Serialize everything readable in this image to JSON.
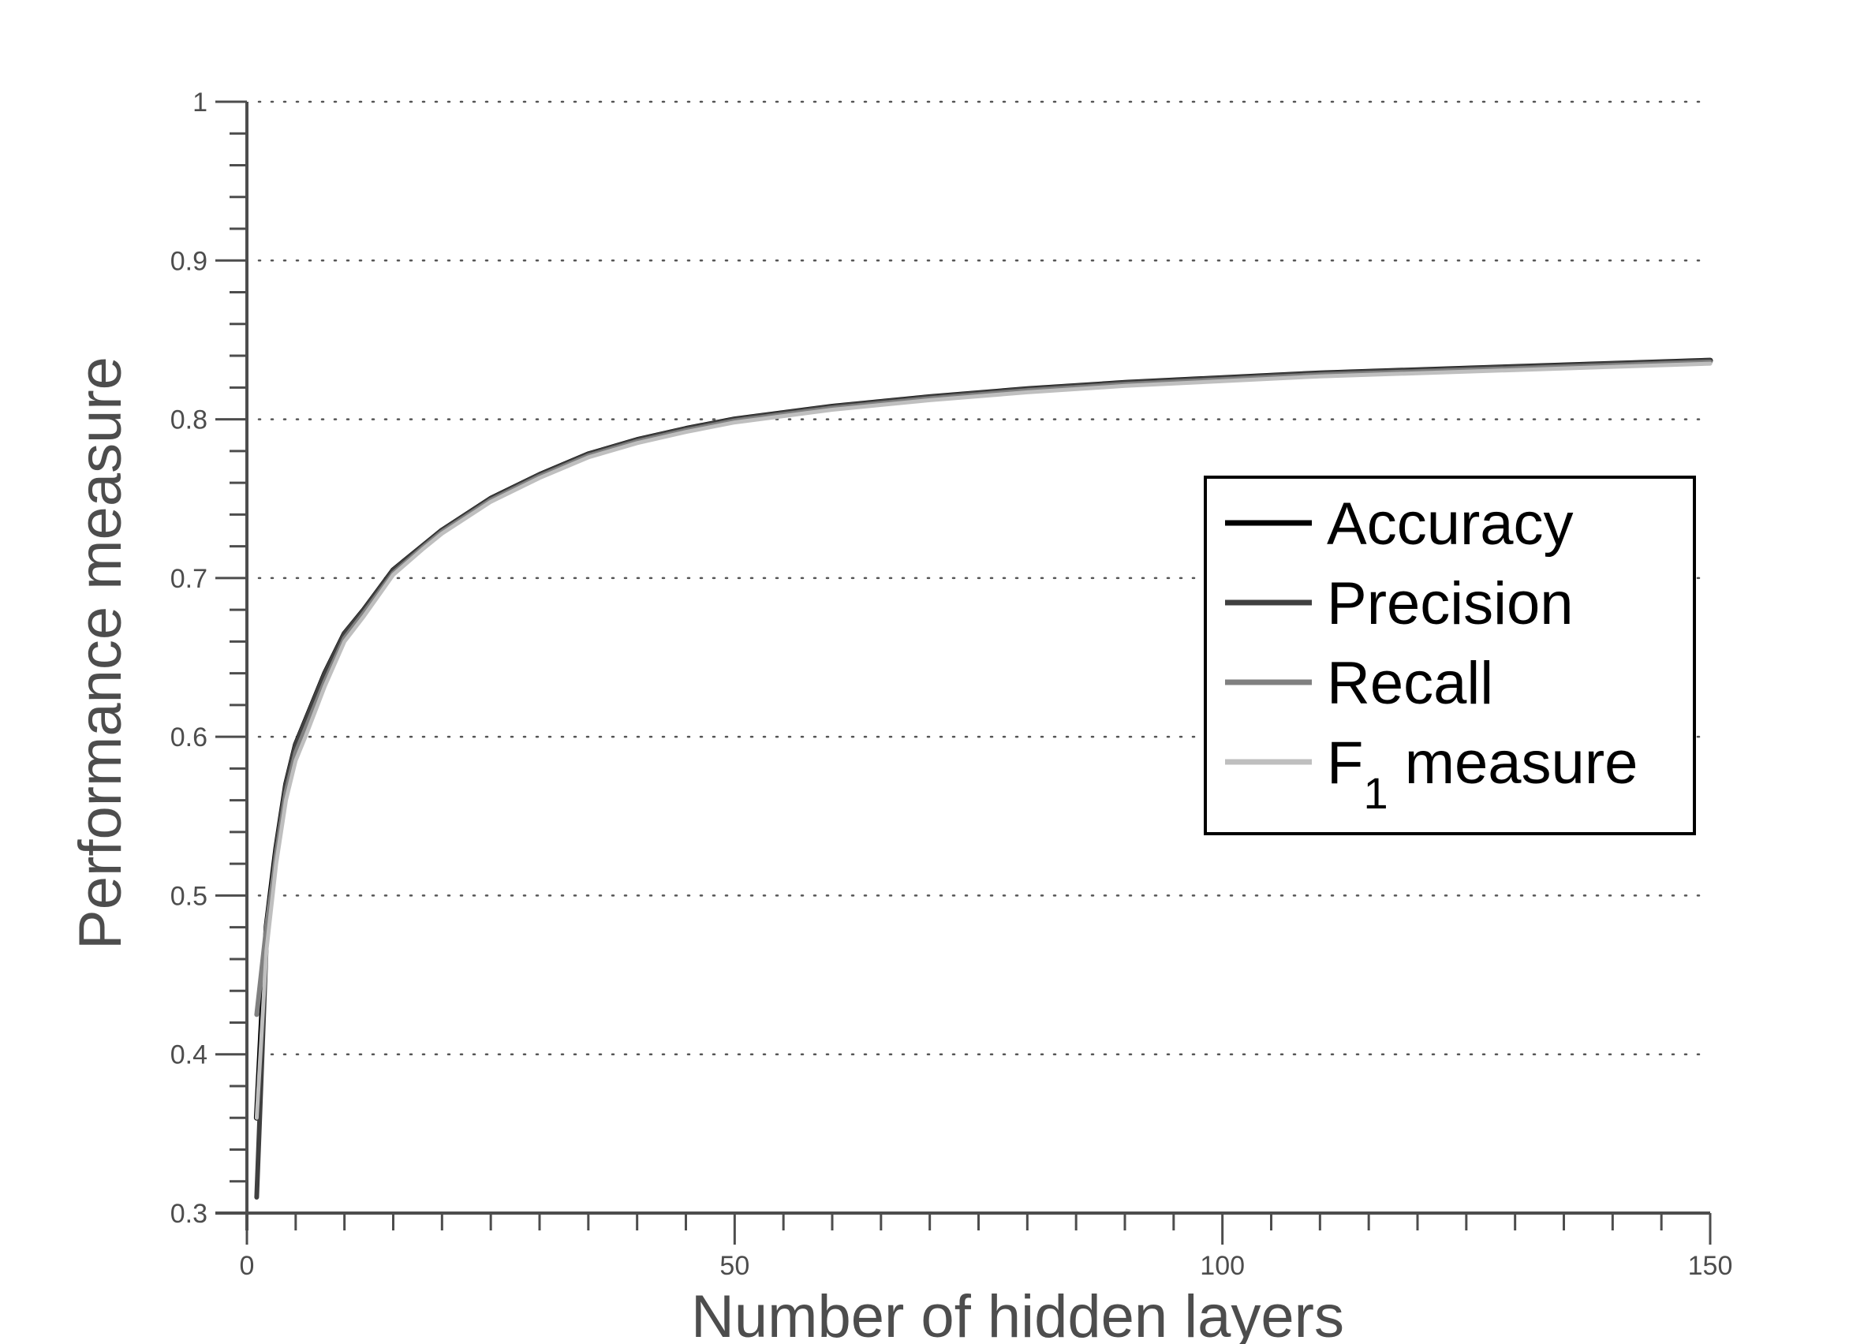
{
  "chart_data": {
    "type": "line",
    "title": "",
    "xlabel": "Number of hidden layers",
    "ylabel": "Performance measure",
    "xlim": [
      0,
      150
    ],
    "ylim": [
      0.3,
      1
    ],
    "xticks": [
      0,
      50,
      100,
      150
    ],
    "xtick_labels": [
      "0",
      "50",
      "100",
      "150"
    ],
    "yticks": [
      0.3,
      0.4,
      0.5,
      0.6,
      0.7,
      0.8,
      0.9,
      1
    ],
    "ytick_labels": [
      "0.3",
      "0.4",
      "0.5",
      "0.6",
      "0.7",
      "0.8",
      "0.9",
      "1"
    ],
    "grid": "horizontal-dotted",
    "legend_position": "right",
    "series": [
      {
        "name": "Accuracy",
        "color": "#000000",
        "x": [
          1,
          2,
          3,
          4,
          5,
          6,
          8,
          10,
          12,
          15,
          18,
          20,
          25,
          30,
          35,
          40,
          45,
          50,
          60,
          70,
          80,
          90,
          100,
          110,
          120,
          130,
          140,
          150
        ],
        "values": [
          0.36,
          0.48,
          0.53,
          0.57,
          0.595,
          0.61,
          0.64,
          0.665,
          0.68,
          0.705,
          0.72,
          0.73,
          0.75,
          0.765,
          0.778,
          0.787,
          0.794,
          0.8,
          0.808,
          0.814,
          0.819,
          0.823,
          0.826,
          0.829,
          0.831,
          0.833,
          0.835,
          0.837
        ]
      },
      {
        "name": "Precision",
        "color": "#404040",
        "x": [
          1,
          2,
          3,
          4,
          5,
          6,
          8,
          10,
          12,
          15,
          18,
          20,
          25,
          30,
          35,
          40,
          45,
          50,
          60,
          70,
          80,
          90,
          100,
          110,
          120,
          130,
          140,
          150
        ],
        "values": [
          0.31,
          0.47,
          0.53,
          0.57,
          0.595,
          0.61,
          0.64,
          0.665,
          0.68,
          0.705,
          0.72,
          0.73,
          0.75,
          0.765,
          0.778,
          0.787,
          0.794,
          0.8,
          0.808,
          0.814,
          0.819,
          0.823,
          0.826,
          0.829,
          0.831,
          0.833,
          0.835,
          0.837
        ]
      },
      {
        "name": "Recall",
        "color": "#808080",
        "x": [
          1,
          2,
          3,
          4,
          5,
          6,
          8,
          10,
          12,
          15,
          18,
          20,
          25,
          30,
          35,
          40,
          45,
          50,
          60,
          70,
          80,
          90,
          100,
          110,
          120,
          130,
          140,
          150
        ],
        "values": [
          0.425,
          0.48,
          0.525,
          0.565,
          0.59,
          0.605,
          0.635,
          0.662,
          0.678,
          0.703,
          0.719,
          0.729,
          0.749,
          0.764,
          0.777,
          0.786,
          0.793,
          0.799,
          0.807,
          0.813,
          0.818,
          0.822,
          0.825,
          0.828,
          0.83,
          0.832,
          0.834,
          0.836
        ]
      },
      {
        "name": "F",
        "name_sub": "1",
        "name_suffix": " measure",
        "color": "#bfbfbf",
        "x": [
          1,
          2,
          3,
          4,
          5,
          6,
          8,
          10,
          12,
          15,
          18,
          20,
          25,
          30,
          35,
          40,
          45,
          50,
          60,
          70,
          80,
          90,
          100,
          110,
          120,
          130,
          140,
          150
        ],
        "values": [
          0.36,
          0.465,
          0.52,
          0.56,
          0.585,
          0.6,
          0.632,
          0.66,
          0.676,
          0.702,
          0.718,
          0.728,
          0.748,
          0.763,
          0.776,
          0.785,
          0.792,
          0.798,
          0.806,
          0.812,
          0.817,
          0.821,
          0.824,
          0.827,
          0.829,
          0.831,
          0.833,
          0.835
        ]
      }
    ]
  }
}
